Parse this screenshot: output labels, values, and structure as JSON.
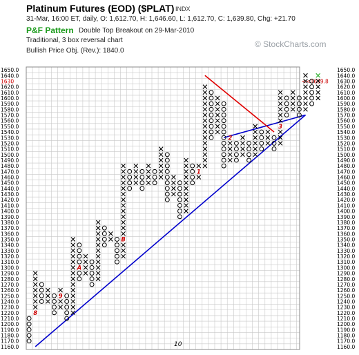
{
  "header": {
    "title": "Platinum Futures (EOD) ($PLAT)",
    "index_tag": "INDX",
    "ohlc": "31-Mar, 16:00 ET, daily, O: 1,612.70, H: 1,646.60, L: 1,612.70, C: 1,639.80, Chg: +21.70",
    "pf_label": "P&F Pattern",
    "signal": "Double Top Breakout on 29-Mar-2010",
    "method": "Traditional, 3 box reversal chart",
    "objective": "Bullish Price Obj. (Rev.): 1840.0"
  },
  "watermark": "© StockCharts.com",
  "colors": {
    "grid": "#c8c8c8",
    "frame": "#888888",
    "support_line": "#0000cc",
    "resistance_line": "#e00000",
    "month_marker": "#cc0000",
    "last_box": "#22aa22",
    "price_marker": "#cc0000"
  },
  "chart_data": {
    "type": "point-and-figure",
    "box_size": 10,
    "reversal": 3,
    "ylim": [
      1160,
      1650
    ],
    "yticks": [
      1650.0,
      1640.0,
      1630.0,
      1620.0,
      1610.0,
      1600.0,
      1590.0,
      1580.0,
      1570.0,
      1560.0,
      1550.0,
      1540.0,
      1530.0,
      1520.0,
      1510.0,
      1500.0,
      1490.0,
      1480.0,
      1470.0,
      1460.0,
      1450.0,
      1440.0,
      1430.0,
      1420.0,
      1410.0,
      1400.0,
      1390.0,
      1380.0,
      1370.0,
      1360.0,
      1350.0,
      1340.0,
      1330.0,
      1320.0,
      1310.0,
      1300.0,
      1290.0,
      1280.0,
      1270.0,
      1260.0,
      1250.0,
      1240.0,
      1230.0,
      1220.0,
      1210.0,
      1200.0,
      1190.0,
      1180.0,
      1170.0,
      1160.0
    ],
    "current_price_label": "1630",
    "right_marker": "<<1639.8",
    "x_label": "10",
    "columns": [
      {
        "type": "O",
        "top": 1210,
        "bottom": 1170
      },
      {
        "type": "X",
        "top": 1290,
        "bottom": 1220,
        "markers": [
          {
            "price": 1220,
            "text": "8"
          }
        ]
      },
      {
        "type": "O",
        "top": 1270,
        "bottom": 1240
      },
      {
        "type": "X",
        "top": 1260,
        "bottom": 1240
      },
      {
        "type": "O",
        "top": 1250,
        "bottom": 1220
      },
      {
        "type": "X",
        "top": 1260,
        "bottom": 1230,
        "markers": [
          {
            "price": 1250,
            "text": "9"
          }
        ]
      },
      {
        "type": "O",
        "top": 1250,
        "bottom": 1210
      },
      {
        "type": "X",
        "top": 1350,
        "bottom": 1220
      },
      {
        "type": "O",
        "top": 1340,
        "bottom": 1280,
        "markers": [
          {
            "price": 1300,
            "text": "A"
          }
        ]
      },
      {
        "type": "X",
        "top": 1320,
        "bottom": 1290
      },
      {
        "type": "O",
        "top": 1310,
        "bottom": 1270
      },
      {
        "type": "X",
        "top": 1380,
        "bottom": 1280
      },
      {
        "type": "O",
        "top": 1370,
        "bottom": 1340
      },
      {
        "type": "X",
        "top": 1360,
        "bottom": 1350
      },
      {
        "type": "O",
        "top": 1350,
        "bottom": 1310
      },
      {
        "type": "X",
        "top": 1480,
        "bottom": 1320,
        "markers": [
          {
            "price": 1350,
            "text": "B"
          }
        ]
      },
      {
        "type": "O",
        "top": 1470,
        "bottom": 1440
      },
      {
        "type": "X",
        "top": 1480,
        "bottom": 1450
      },
      {
        "type": "O",
        "top": 1470,
        "bottom": 1440
      },
      {
        "type": "X",
        "top": 1480,
        "bottom": 1450
      },
      {
        "type": "O",
        "top": 1470,
        "bottom": 1450
      },
      {
        "type": "X",
        "top": 1510,
        "bottom": 1460
      },
      {
        "type": "O",
        "top": 1500,
        "bottom": 1420
      },
      {
        "type": "X",
        "top": 1460,
        "bottom": 1430
      },
      {
        "type": "O",
        "top": 1450,
        "bottom": 1390
      },
      {
        "type": "X",
        "top": 1490,
        "bottom": 1400
      },
      {
        "type": "O",
        "top": 1480,
        "bottom": 1450
      },
      {
        "type": "X",
        "top": 1480,
        "bottom": 1460,
        "markers": [
          {
            "price": 1470,
            "text": "1"
          }
        ]
      },
      {
        "type": "X",
        "top": 1620,
        "bottom": 1480
      },
      {
        "type": "O",
        "top": 1610,
        "bottom": 1530
      },
      {
        "type": "X",
        "top": 1600,
        "bottom": 1540
      },
      {
        "type": "O",
        "top": 1590,
        "bottom": 1480
      },
      {
        "type": "X",
        "top": 1530,
        "bottom": 1490,
        "markers": [
          {
            "price": 1530,
            "text": "2"
          }
        ]
      },
      {
        "type": "O",
        "top": 1520,
        "bottom": 1490
      },
      {
        "type": "X",
        "top": 1530,
        "bottom": 1500
      },
      {
        "type": "O",
        "top": 1520,
        "bottom": 1490
      },
      {
        "type": "X",
        "top": 1550,
        "bottom": 1500
      },
      {
        "type": "O",
        "top": 1540,
        "bottom": 1510
      },
      {
        "type": "X",
        "top": 1540,
        "bottom": 1520
      },
      {
        "type": "O",
        "top": 1530,
        "bottom": 1510
      },
      {
        "type": "X",
        "top": 1610,
        "bottom": 1520,
        "markers": [
          {
            "price": 1550,
            "text": "3"
          }
        ]
      },
      {
        "type": "O",
        "top": 1600,
        "bottom": 1570
      },
      {
        "type": "X",
        "top": 1610,
        "bottom": 1580
      },
      {
        "type": "O",
        "top": 1600,
        "bottom": 1570
      },
      {
        "type": "X",
        "top": 1640,
        "bottom": 1580
      },
      {
        "type": "O",
        "top": 1630,
        "bottom": 1590
      },
      {
        "type": "X",
        "top": 1640,
        "bottom": 1600,
        "last_box": 1640
      }
    ],
    "trendlines": [
      {
        "name": "Bullish Support Line",
        "from": [
          1,
          1160
        ],
        "to": [
          44,
          1570
        ]
      },
      {
        "name": "Bullish Support Line",
        "from": [
          31,
          1530
        ],
        "to": [
          44,
          1570
        ]
      },
      {
        "name": "Bearish Resistance Line",
        "from": [
          28,
          1640
        ],
        "to": [
          39,
          1540
        ]
      }
    ]
  }
}
